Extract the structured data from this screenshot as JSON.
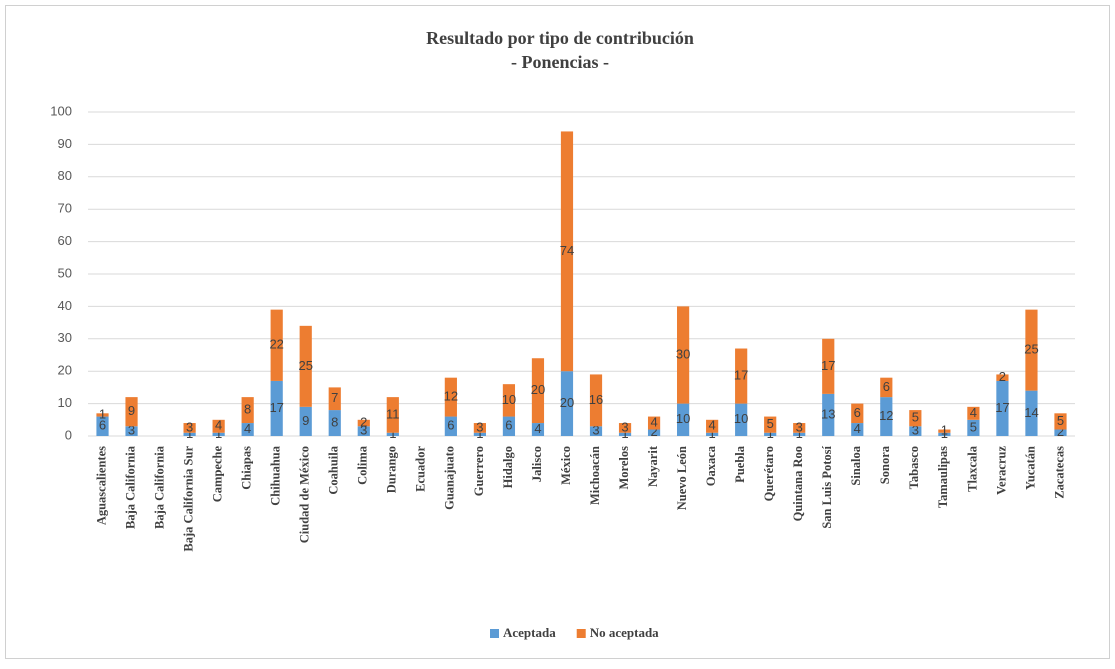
{
  "chart_data": {
    "type": "stacked_bar",
    "title": "Resultado por tipo de contribución",
    "subtitle": "- Ponencias -",
    "categories": [
      "Aguascalientes",
      "Baja California",
      "Baja California",
      "Baja California Sur",
      "Campeche",
      "Chiapas",
      "Chihuahua",
      "Ciudad de México",
      "Coahuila",
      "Colima",
      "Durango",
      "Ecuador",
      "Guanajuato",
      "Guerrero",
      "Hidalgo",
      "Jalisco",
      "México",
      "Michoacán",
      "Morelos",
      "Nayarit",
      "Nuevo León",
      "Oaxaca",
      "Puebla",
      "Querétaro",
      "Quintana Roo",
      "San Luis Potosí",
      "Sinaloa",
      "Sonora",
      "Tabasco",
      "Tamaulipas",
      "Tlaxcala",
      "Veracruz",
      "Yucatán",
      "Zacatecas"
    ],
    "series": [
      {
        "name": "Aceptada",
        "color": "#5b9bd5",
        "values": [
          6,
          3,
          null,
          1,
          1,
          4,
          17,
          9,
          8,
          3,
          1,
          null,
          6,
          1,
          6,
          4,
          20,
          3,
          1,
          2,
          10,
          1,
          10,
          1,
          1,
          13,
          4,
          12,
          3,
          1,
          5,
          17,
          14,
          2
        ]
      },
      {
        "name": "No aceptada",
        "color": "#ed7d31",
        "values": [
          1,
          9,
          null,
          3,
          4,
          8,
          22,
          25,
          7,
          2,
          11,
          null,
          12,
          3,
          10,
          20,
          74,
          16,
          3,
          4,
          30,
          4,
          17,
          5,
          3,
          17,
          6,
          6,
          5,
          1,
          4,
          2,
          25,
          5
        ]
      }
    ],
    "ylim": [
      0,
      100
    ],
    "yticks": [
      0,
      10,
      20,
      30,
      40,
      50,
      60,
      70,
      80,
      90,
      100
    ],
    "grid": true,
    "legend": "bottom"
  }
}
